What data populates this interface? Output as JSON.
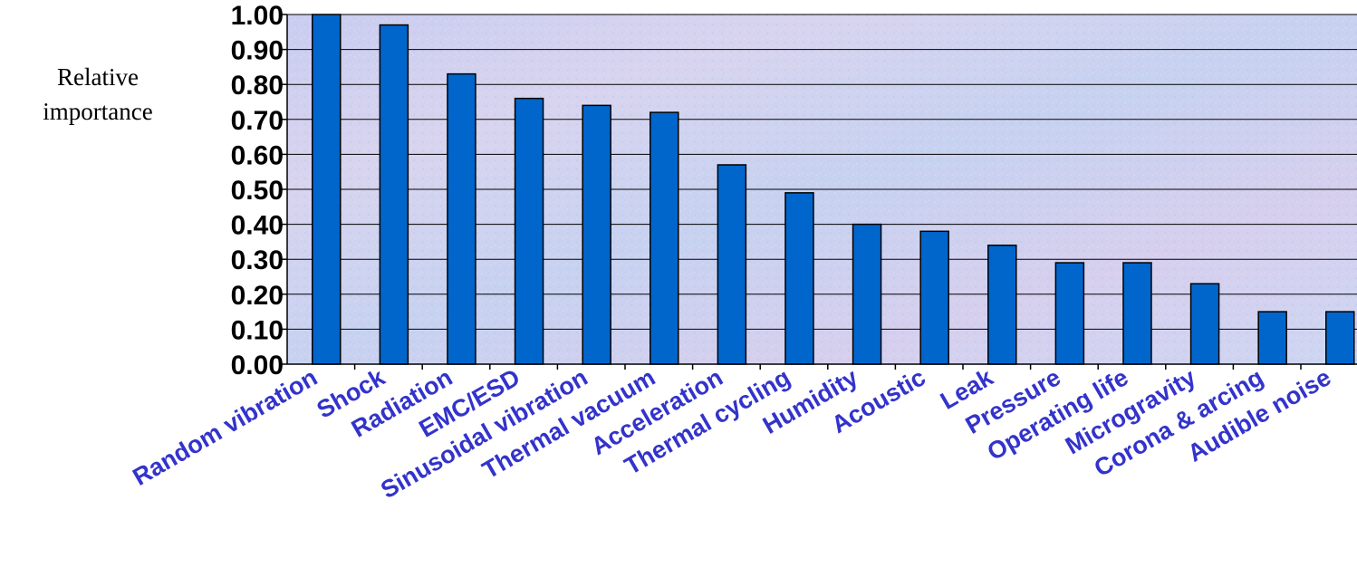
{
  "chart_data": {
    "type": "bar",
    "ylabel": "Relative importance",
    "ylabel_lines": [
      "Relative",
      "importance"
    ],
    "xlabel": "",
    "ylim": [
      0,
      1
    ],
    "yticks": [
      "0.00",
      "0.10",
      "0.20",
      "0.30",
      "0.40",
      "0.50",
      "0.60",
      "0.70",
      "0.80",
      "0.90",
      "1.00"
    ],
    "categories": [
      "Random vibration",
      "Shock",
      "Radiation",
      "EMC/ESD",
      "Sinusoidal vibration",
      "Thermal vacuum",
      "Acceleration",
      "Thermal cycling",
      "Humidity",
      "Acoustic",
      "Leak",
      "Pressure",
      "Operating life",
      "Microgravity",
      "Corona & arcing",
      "Audible noise"
    ],
    "values": [
      1.0,
      0.97,
      0.83,
      0.76,
      0.74,
      0.72,
      0.57,
      0.49,
      0.4,
      0.38,
      0.34,
      0.29,
      0.29,
      0.23,
      0.15,
      0.15
    ],
    "bar_color": "#0066cc",
    "xtick_color": "#3333cc",
    "grid": true
  }
}
